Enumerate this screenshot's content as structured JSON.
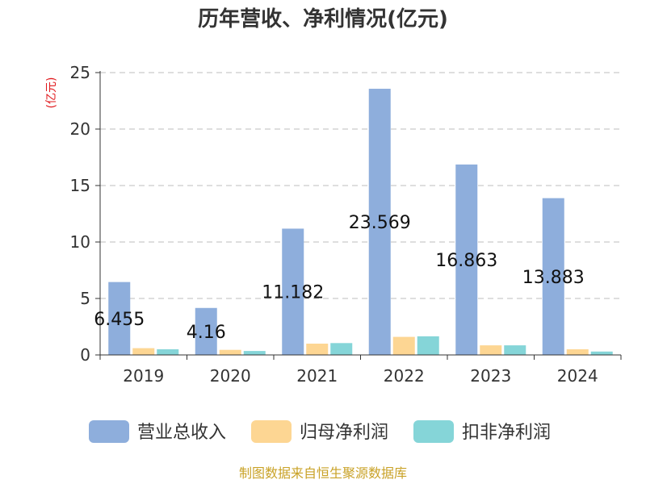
{
  "colors": {
    "revenue": "#8eaedc",
    "net_profit": "#fdd693",
    "deducted_net_profit": "#85d5d8",
    "axis": "#333333",
    "grid": "#bdbdbd",
    "title": "#333333",
    "ylabel": "#e0171b",
    "source": "#c9a227"
  },
  "chart_data": {
    "type": "bar",
    "title": "历年营收、净利情况(亿元)",
    "ylabel": "(亿元)",
    "xlabel": "",
    "ylim": [
      0,
      25
    ],
    "yticks": [
      "0",
      "5",
      "10",
      "15",
      "20",
      "25"
    ],
    "grid": true,
    "legend_position": "bottom",
    "categories": [
      "2019",
      "2020",
      "2021",
      "2022",
      "2023",
      "2024"
    ],
    "series": [
      {
        "name": "营业总收入",
        "values": [
          6.455,
          4.16,
          11.182,
          23.569,
          16.863,
          13.883
        ],
        "labels": [
          "6.455",
          "4.16",
          "11.182",
          "23.569",
          "16.863",
          "13.883"
        ]
      },
      {
        "name": "归母净利润",
        "values": [
          0.6,
          0.45,
          1.0,
          1.6,
          0.85,
          0.5
        ]
      },
      {
        "name": "扣非净利润",
        "values": [
          0.5,
          0.35,
          1.05,
          1.65,
          0.85,
          0.3
        ]
      }
    ]
  },
  "source_text": "制图数据来自恒生聚源数据库"
}
